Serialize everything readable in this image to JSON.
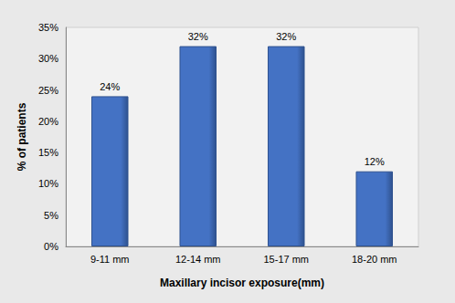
{
  "chart_data": {
    "type": "bar",
    "x_label": "Maxillary incisor exposure(mm)",
    "y_label": "% of patients",
    "categories": [
      "9-11 mm",
      "12-14 mm",
      "15-17 mm",
      "18-20 mm"
    ],
    "values": [
      24,
      32,
      32,
      12
    ],
    "value_labels": [
      "24%",
      "32%",
      "32%",
      "12%"
    ],
    "color": "#4472c4",
    "ylim": [
      0,
      35
    ],
    "yticks": [
      {
        "value": 0,
        "label": "0%"
      },
      {
        "value": 5,
        "label": "5%"
      },
      {
        "value": 10,
        "label": "10%"
      },
      {
        "value": 15,
        "label": "15%"
      },
      {
        "value": 20,
        "label": "20%"
      },
      {
        "value": 25,
        "label": "25%"
      },
      {
        "value": 30,
        "label": "30%"
      },
      {
        "value": 35,
        "label": "35%"
      }
    ],
    "grid": false,
    "data_labels": true
  }
}
